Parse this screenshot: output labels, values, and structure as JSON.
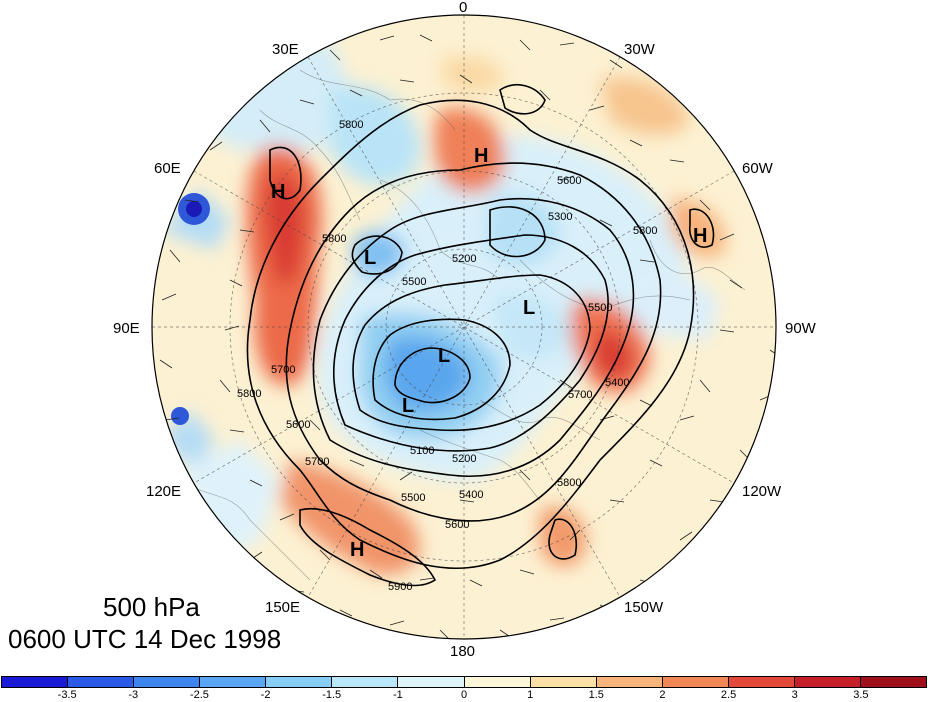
{
  "title": {
    "level": "500 hPa",
    "time": "0600 UTC 14 Dec 1998"
  },
  "longitude_labels": {
    "deg_0": "0",
    "deg_30w": "30W",
    "deg_60w": "60W",
    "deg_90w": "90W",
    "deg_120w": "120W",
    "deg_150w": "150W",
    "deg_180": "180",
    "deg_150e": "150E",
    "deg_120e": "120E",
    "deg_90e": "90E",
    "deg_60e": "60E",
    "deg_30e": "30E"
  },
  "pressure_centers": {
    "high_1": "H",
    "high_2": "H",
    "high_3": "H",
    "high_4": "H",
    "low_1": "L",
    "low_2": "L",
    "low_3": "L",
    "low_4": "L"
  },
  "contour_labels": {
    "c1": "5600",
    "c2": "5300",
    "c3": "5800",
    "c4": "5200",
    "c5": "5800",
    "c6": "5500",
    "c7": "5400",
    "c8": "5700",
    "c9": "5600",
    "c10": "5200",
    "c11": "5100",
    "c12": "5500",
    "c13": "5400",
    "c14": "5600",
    "c15": "5800",
    "c16": "5900",
    "c17": "5800",
    "c18": "5700",
    "c19": "5800",
    "c20": "5700",
    "c21": "5500"
  },
  "colorbar": {
    "ticks": [
      "-3.5",
      "-3",
      "-2.5",
      "-2",
      "-1.5",
      "-1",
      "0",
      "1",
      "1.5",
      "2",
      "2.5",
      "3",
      "3.5"
    ],
    "colors": [
      "#1a1ad6",
      "#2a5ae6",
      "#3f85ee",
      "#5aa6f2",
      "#88cdf5",
      "#b9e6f8",
      "#dff3fb",
      "#fcf6d8",
      "#fbe0a8",
      "#f7b57c",
      "#f08856",
      "#e2493a",
      "#c51f2a",
      "#a00f1c"
    ]
  }
}
